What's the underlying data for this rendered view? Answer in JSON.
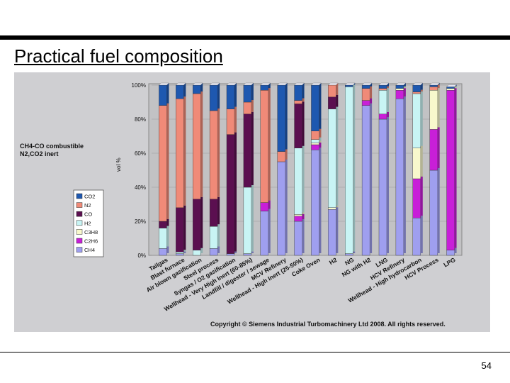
{
  "slide": {
    "title": "Practical fuel composition",
    "page_number": "54"
  },
  "chart_data": {
    "type": "bar",
    "stacked": true,
    "title": "",
    "xlabel": "",
    "ylabel": "vol %",
    "ylim": [
      0,
      100
    ],
    "y_ticks": [
      "0%",
      "20%",
      "40%",
      "60%",
      "80%",
      "100%"
    ],
    "annotation_lines": [
      "CH4-CO combustible",
      "N2,CO2 inert"
    ],
    "copyright": "Copyright © Siemens Industrial Turbomachinery Ltd 2008.  All rights reserved.",
    "legend_position": "left",
    "categories": [
      "Tailgas",
      "Blast furnace",
      "Air blown gasification",
      "Steel process",
      "Syngas / O2 gasification",
      "Wellhead - Very High Inert (60-85%)",
      "Landfill / digester / sewage",
      "MCV Refinery",
      "Wellhead - High Inert (25-50%)",
      "Coke Oven",
      "H2",
      "NG",
      "NG with H2",
      "LNG",
      "HCV Refinery",
      "Wellhead - High hydrocarbon",
      "HCV Process",
      "LPG"
    ],
    "series": [
      {
        "name": "CH4",
        "color": "#9f9fef",
        "values": [
          4,
          1,
          0,
          4,
          1,
          1,
          26,
          55,
          20,
          62,
          27,
          1,
          88,
          80,
          92,
          22,
          50,
          3
        ]
      },
      {
        "name": "C2H6",
        "color": "#c81fd8",
        "values": [
          0,
          0,
          0,
          0,
          0,
          0,
          5,
          0,
          3,
          3,
          0,
          0,
          3,
          3,
          5,
          23,
          24,
          94
        ]
      },
      {
        "name": "C3H8",
        "color": "#f8f8cc",
        "values": [
          0,
          0,
          0,
          0,
          0,
          0,
          0,
          0,
          1,
          1,
          1,
          0,
          0,
          0,
          1,
          18,
          23,
          1
        ]
      },
      {
        "name": "H2",
        "color": "#c8f4f4",
        "values": [
          12,
          1,
          3,
          13,
          0,
          39,
          0,
          0,
          39,
          2,
          58,
          98,
          0,
          14,
          0,
          32,
          0,
          0
        ]
      },
      {
        "name": "CO",
        "color": "#5b0f50",
        "values": [
          4,
          26,
          30,
          16,
          70,
          43,
          0,
          0,
          26,
          0,
          7,
          0,
          0,
          0,
          0,
          0,
          0,
          0
        ]
      },
      {
        "name": "N2",
        "color": "#f08a78",
        "values": [
          68,
          64,
          62,
          52,
          15,
          7,
          66,
          6,
          2,
          5,
          7,
          0,
          7,
          1,
          0,
          1,
          2,
          0
        ]
      },
      {
        "name": "CO2",
        "color": "#1e58b0",
        "values": [
          12,
          8,
          5,
          15,
          14,
          10,
          3,
          39,
          9,
          27,
          0,
          1,
          2,
          2,
          2,
          4,
          1,
          1
        ]
      }
    ]
  }
}
